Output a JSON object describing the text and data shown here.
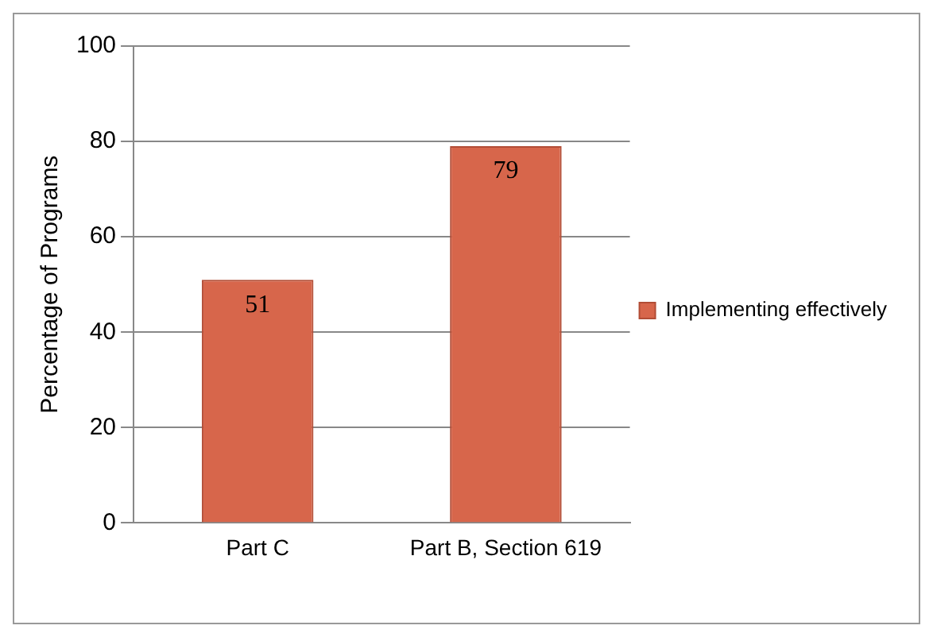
{
  "chart_data": {
    "type": "bar",
    "ylabel": "Percentage of Programs",
    "categories": [
      "Part C",
      "Part B, Section 619"
    ],
    "series": [
      {
        "name": "Implementing effectively",
        "color": "#d7664b",
        "values": [
          51,
          79
        ]
      }
    ],
    "ylim": [
      0,
      100
    ],
    "yticks": [
      0,
      20,
      40,
      60,
      80,
      100
    ],
    "grid": "y",
    "legend": "right",
    "data_labels": true
  }
}
